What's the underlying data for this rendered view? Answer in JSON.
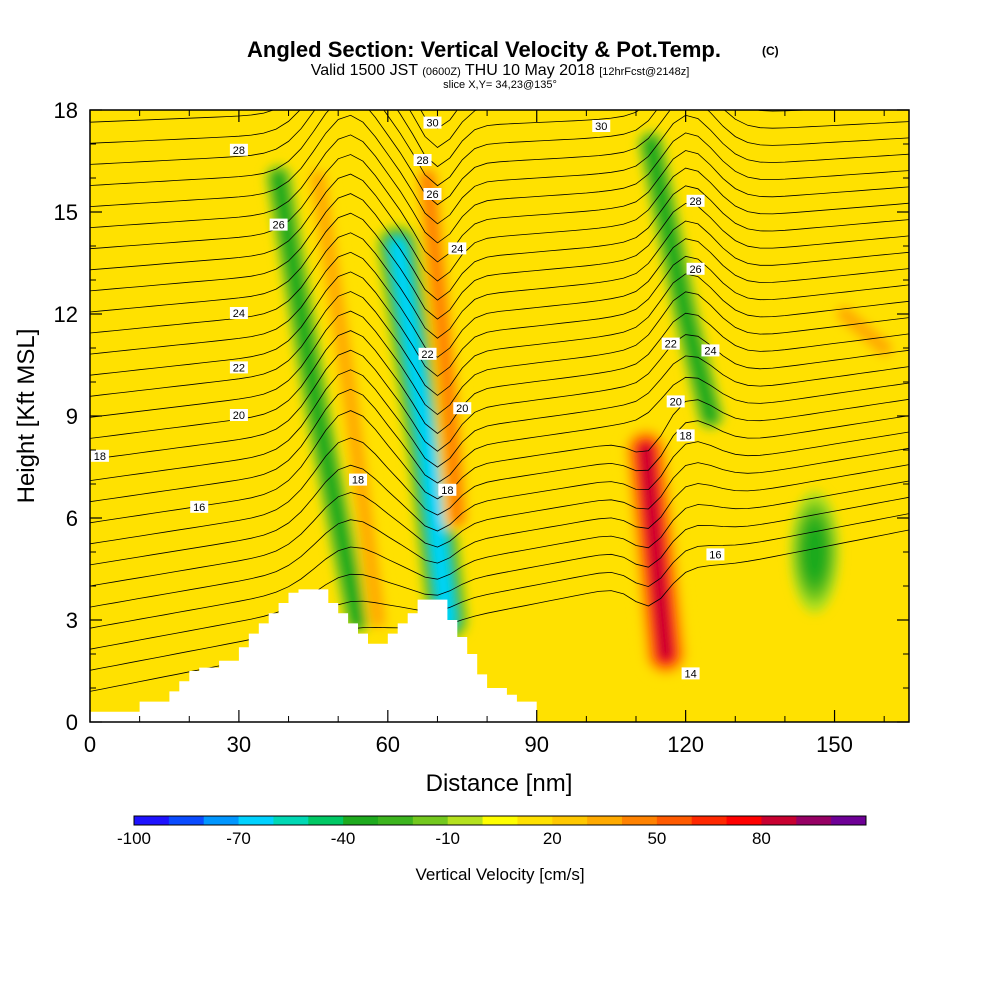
{
  "chart_data": {
    "type": "heatmap",
    "title": "Angled Section: Vertical Velocity & Pot.Temp.",
    "title_tag": "(C)",
    "subtitle_parts": {
      "a": "Valid 1500 JST",
      "b": "(0600Z)",
      "c": "THU 10 May 2018",
      "d": "[12hrFcst@2148z]"
    },
    "subtitle2": "slice X,Y= 34,23@135°",
    "xlabel": "Distance [nm]",
    "ylabel": "Height [Kft MSL]",
    "xlim": [
      0,
      165
    ],
    "ylim": [
      0,
      18
    ],
    "x_ticks": [
      "0",
      "30",
      "60",
      "90",
      "120",
      "150"
    ],
    "y_ticks": [
      "0",
      "3",
      "6",
      "9",
      "12",
      "15",
      "18"
    ],
    "colorbar": {
      "title": "Vertical Velocity [cm/s]",
      "tick_labels": [
        "-100",
        "-70",
        "-40",
        "-10",
        "20",
        "50",
        "80"
      ],
      "levels_min": -100,
      "levels_step": 10,
      "colors": [
        "#1e12ff",
        "#0a4bff",
        "#0096ff",
        "#00d2ff",
        "#00d8b4",
        "#00c864",
        "#1eaa1e",
        "#3cb41e",
        "#73c81e",
        "#b4e11e",
        "#ffff00",
        "#ffe100",
        "#ffc800",
        "#ffaa00",
        "#ff8200",
        "#ff5a00",
        "#ff2800",
        "#ff0000",
        "#c80030",
        "#960064",
        "#6e0096"
      ]
    },
    "terrain_profile": {
      "x": [
        0,
        10,
        16,
        18,
        20,
        22,
        26,
        30,
        32,
        34,
        36,
        38,
        40,
        42,
        44,
        46,
        48,
        50,
        52,
        54,
        56,
        58,
        60,
        62,
        64,
        66,
        68,
        70,
        72,
        74,
        76,
        78,
        80,
        84,
        86,
        90
      ],
      "height": [
        0.3,
        0.6,
        0.9,
        1.2,
        1.5,
        1.6,
        1.8,
        2.2,
        2.6,
        2.9,
        3.2,
        3.5,
        3.8,
        3.9,
        3.9,
        3.9,
        3.5,
        3.2,
        2.9,
        2.6,
        2.3,
        2.3,
        2.6,
        2.9,
        3.2,
        3.6,
        3.6,
        3.6,
        3.0,
        2.5,
        2.0,
        1.4,
        1.0,
        0.8,
        0.6,
        0.3
      ]
    },
    "vertical_velocity_features_cm_s": [
      {
        "x": [
          38,
          46,
          54
        ],
        "y": [
          16,
          9,
          3
        ],
        "value": -40
      },
      {
        "x": [
          46,
          52,
          58
        ],
        "y": [
          16,
          10,
          3
        ],
        "value": 30
      },
      {
        "x": [
          62,
          68,
          72
        ],
        "y": [
          14,
          8,
          3
        ],
        "value": -70
      },
      {
        "x": [
          68,
          72,
          74
        ],
        "y": [
          16,
          10,
          6
        ],
        "value": 40
      },
      {
        "x": [
          112,
          114,
          116
        ],
        "y": [
          8,
          5,
          2
        ],
        "value": 80
      },
      {
        "x": [
          113,
          120,
          125
        ],
        "y": [
          17,
          12,
          9
        ],
        "value": -40
      },
      {
        "x": [
          146
        ],
        "y": [
          5
        ],
        "value": -40
      },
      {
        "x": [
          152,
          160
        ],
        "y": [
          12,
          11
        ],
        "value": 30
      }
    ],
    "potential_temperature_contour_labels_C": [
      "30",
      "30",
      "28",
      "28",
      "28",
      "26",
      "26",
      "26",
      "24",
      "24",
      "24",
      "22",
      "22",
      "22",
      "20",
      "20",
      "20",
      "18",
      "18",
      "18",
      "18",
      "16",
      "16",
      "14",
      "14"
    ]
  }
}
